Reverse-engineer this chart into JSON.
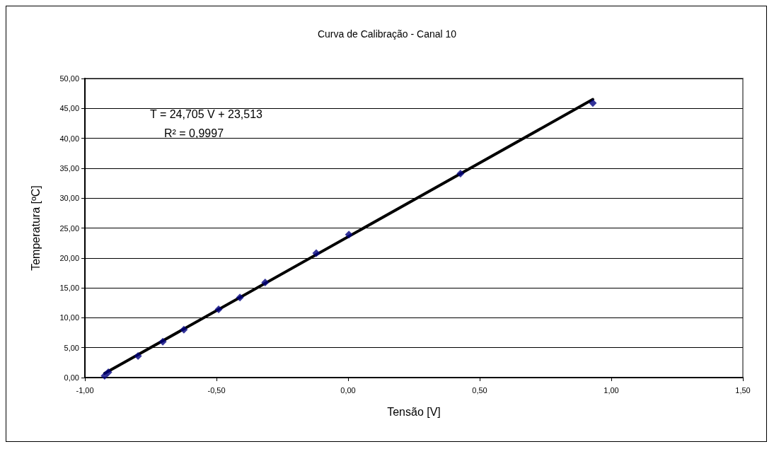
{
  "chart_data": {
    "type": "scatter",
    "title": "Curva de Calibração - Canal 10",
    "xlabel": "Tensão [V]",
    "ylabel": "Temperatura [ºC]",
    "annotations": [
      "T = 24,705 V + 23,513",
      "R² = 0,9997"
    ],
    "x": [
      -0.925,
      -0.911,
      -0.798,
      -0.704,
      -0.624,
      -0.492,
      -0.411,
      -0.315,
      -0.121,
      0.003,
      0.427,
      0.93
    ],
    "series": [
      {
        "color": "#000080",
        "marker": "diamond",
        "values": [
          0.3,
          0.9,
          3.6,
          6.0,
          8.0,
          11.4,
          13.4,
          15.9,
          20.8,
          23.9,
          34.1,
          45.9
        ]
      },
      {
        "type": "line",
        "color": "#000000",
        "marker": "none",
        "line_style": "solid",
        "x": [
          -0.925,
          0.93
        ],
        "values": [
          0.7,
          46.5
        ]
      }
    ],
    "xlim": [
      -1,
      1.5
    ],
    "xticks": [
      {
        "value": -1,
        "label": "-1,00"
      },
      {
        "value": -0.5,
        "label": "-0,50"
      },
      {
        "value": 0,
        "label": "0,00"
      },
      {
        "value": 0.5,
        "label": "0,50"
      },
      {
        "value": 1,
        "label": "1,00"
      },
      {
        "value": 1.5,
        "label": "1,50"
      }
    ],
    "ylim": [
      0,
      50
    ],
    "yticks": [
      {
        "value": 0,
        "label": "0,00"
      },
      {
        "value": 5,
        "label": "5,00"
      },
      {
        "value": 10,
        "label": "10,00"
      },
      {
        "value": 15,
        "label": "15,00"
      },
      {
        "value": 20,
        "label": "20,00"
      },
      {
        "value": 25,
        "label": "25,00"
      },
      {
        "value": 30,
        "label": "30,00"
      },
      {
        "value": 35,
        "label": "35,00"
      },
      {
        "value": 40,
        "label": "40,00"
      },
      {
        "value": 45,
        "label": "45,00"
      },
      {
        "value": 50,
        "label": "50,00"
      }
    ],
    "grid": "y"
  }
}
